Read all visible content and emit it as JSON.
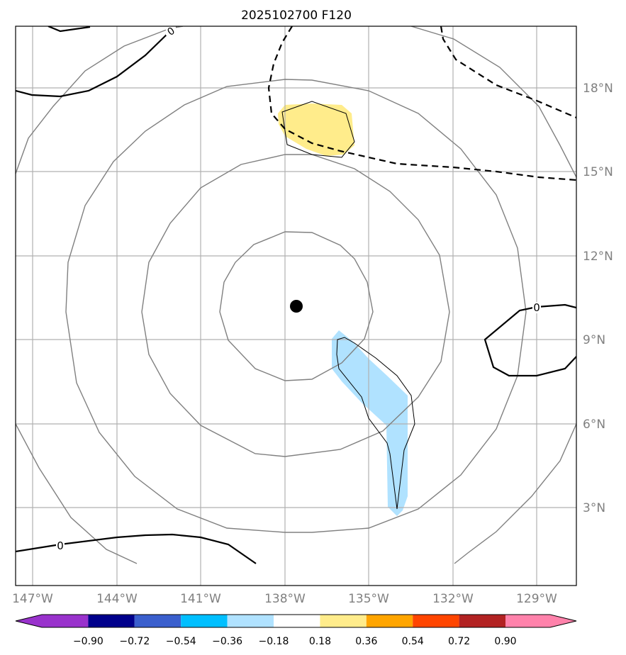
{
  "chart_data": {
    "type": "map-contour",
    "title": "2025102700 F120",
    "x_ticks": [
      "147°W",
      "144°W",
      "141°W",
      "138°W",
      "135°W",
      "132°W",
      "129°W"
    ],
    "y_ticks": [
      "18°N",
      "15°N",
      "12°N",
      "9°N",
      "6°N",
      "3°N"
    ],
    "lon_range": [
      -147.6,
      -127.7
    ],
    "lat_range": [
      0.3,
      20.2
    ],
    "grid": true,
    "center_marker": {
      "lon": -137.6,
      "lat": 10.2
    },
    "colorbar": {
      "tick_labels": [
        "−0.90",
        "−0.72",
        "−0.54",
        "−0.36",
        "−0.18",
        "0.18",
        "0.36",
        "0.54",
        "0.72",
        "0.90"
      ],
      "colors": [
        "#9932cc",
        "#00008b",
        "#3a5fcd",
        "#00bfff",
        "#b0e2ff",
        "#ffffff",
        "#ffec8b",
        "#ffa500",
        "#ff4500",
        "#b22222",
        "#ff82ab"
      ]
    },
    "contour_labels": [
      "0",
      "0",
      "0"
    ],
    "shaded_regions": [
      {
        "name": "positive",
        "level": "0.18–0.36",
        "color": "#ffec8b"
      },
      {
        "name": "negative",
        "level": "−0.36–−0.18",
        "color": "#b0e2ff"
      }
    ]
  }
}
